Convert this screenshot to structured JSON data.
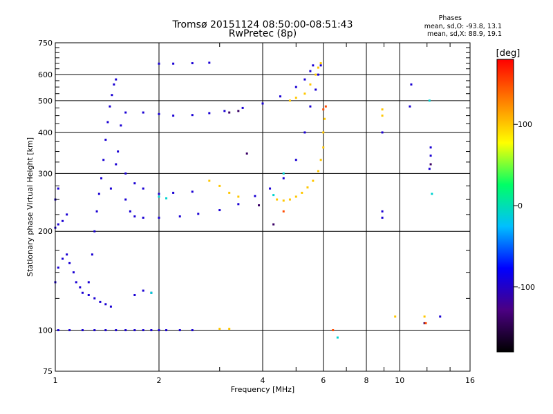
{
  "header": {
    "title": "Tromsø 20151124 08:50:00-08:51:43",
    "subtitle": "RwPretec (8p)",
    "stats_title": "Phases",
    "stats_o": "mean, sd,O: -93.8, 13.1",
    "stats_x": "mean, sd,X: 88.9, 19.1"
  },
  "chart_data": {
    "type": "scatter",
    "xlabel": "Frequency [MHz]",
    "ylabel": "Stationary phase Virtual Height [km]",
    "x_scale": "log",
    "y_scale": "log",
    "xlim": [
      1,
      16
    ],
    "ylim": [
      75,
      750
    ],
    "x_ticks": [
      1,
      2,
      4,
      6,
      8,
      10,
      16
    ],
    "y_ticks": [
      75,
      100,
      200,
      300,
      400,
      500,
      600,
      750
    ],
    "x_minor_ticks": [
      3,
      5,
      7,
      9,
      12,
      14
    ],
    "y_minor_ticks": [
      125,
      150,
      175,
      225,
      250,
      275,
      325,
      350,
      375,
      425,
      450,
      475,
      525,
      550,
      575,
      625,
      650,
      675,
      700,
      725
    ],
    "grid": true,
    "colorbar": {
      "label": "[deg]",
      "range": [
        -180,
        180
      ],
      "ticks": [
        100,
        0,
        -100
      ],
      "colors": [
        "#000000",
        "#4b0082",
        "#0000ff",
        "#00bfff",
        "#00ff66",
        "#ffff00",
        "#ff8000",
        "#ff0000"
      ]
    },
    "series": [
      {
        "phase": -95,
        "points": [
          [
            1.02,
            100
          ],
          [
            1.1,
            100
          ],
          [
            1.2,
            100
          ],
          [
            1.3,
            100
          ],
          [
            1.4,
            100
          ],
          [
            1.5,
            100
          ],
          [
            1.6,
            100
          ],
          [
            1.7,
            100
          ],
          [
            1.8,
            100
          ],
          [
            1.9,
            100
          ],
          [
            2.0,
            100
          ],
          [
            2.1,
            100
          ],
          [
            2.3,
            100
          ],
          [
            2.5,
            100
          ],
          [
            1.0,
            140
          ],
          [
            1.02,
            155
          ],
          [
            1.05,
            165
          ],
          [
            1.08,
            170
          ],
          [
            1.1,
            160
          ],
          [
            1.13,
            150
          ],
          [
            1.15,
            140
          ],
          [
            1.18,
            135
          ],
          [
            1.2,
            130
          ],
          [
            1.25,
            128
          ],
          [
            1.3,
            125
          ],
          [
            1.35,
            122
          ],
          [
            1.4,
            120
          ],
          [
            1.45,
            118
          ],
          [
            1.0,
            205
          ],
          [
            1.02,
            210
          ],
          [
            1.05,
            215
          ],
          [
            1.08,
            225
          ],
          [
            1.0,
            250
          ],
          [
            1.02,
            270
          ],
          [
            1.25,
            140
          ],
          [
            1.28,
            170
          ],
          [
            1.3,
            200
          ],
          [
            1.32,
            230
          ],
          [
            1.34,
            260
          ],
          [
            1.36,
            290
          ],
          [
            1.38,
            330
          ],
          [
            1.4,
            380
          ],
          [
            1.42,
            430
          ],
          [
            1.44,
            480
          ],
          [
            1.46,
            520
          ],
          [
            1.48,
            560
          ],
          [
            1.5,
            580
          ],
          [
            1.45,
            270
          ],
          [
            1.5,
            320
          ],
          [
            1.52,
            350
          ],
          [
            1.55,
            420
          ],
          [
            1.6,
            460
          ],
          [
            1.6,
            250
          ],
          [
            1.65,
            230
          ],
          [
            1.7,
            222
          ],
          [
            1.8,
            220
          ],
          [
            2.0,
            220
          ],
          [
            2.3,
            222
          ],
          [
            2.6,
            226
          ],
          [
            3.0,
            232
          ],
          [
            3.4,
            242
          ],
          [
            3.8,
            256
          ],
          [
            4.2,
            270
          ],
          [
            4.6,
            290
          ],
          [
            5.0,
            330
          ],
          [
            5.3,
            400
          ],
          [
            5.5,
            480
          ],
          [
            5.7,
            540
          ],
          [
            5.8,
            600
          ],
          [
            5.9,
            640
          ],
          [
            1.8,
            460
          ],
          [
            2.0,
            455
          ],
          [
            2.2,
            450
          ],
          [
            2.5,
            452
          ],
          [
            2.8,
            458
          ],
          [
            3.1,
            465
          ],
          [
            3.5,
            475
          ],
          [
            4.0,
            490
          ],
          [
            4.5,
            515
          ],
          [
            5.0,
            550
          ],
          [
            5.3,
            580
          ],
          [
            5.5,
            615
          ],
          [
            5.6,
            640
          ],
          [
            2.0,
            648
          ],
          [
            2.2,
            648
          ],
          [
            2.5,
            650
          ],
          [
            2.8,
            652
          ],
          [
            1.7,
            128
          ],
          [
            1.8,
            132
          ],
          [
            1.9,
            130
          ],
          [
            1.6,
            300
          ],
          [
            1.7,
            280
          ],
          [
            1.8,
            270
          ],
          [
            2.0,
            260
          ],
          [
            2.2,
            262
          ],
          [
            2.5,
            264
          ],
          [
            8.9,
            230
          ],
          [
            8.9,
            220
          ],
          [
            8.9,
            400
          ],
          [
            10.7,
            480
          ],
          [
            10.8,
            560
          ],
          [
            12.2,
            310
          ],
          [
            12.3,
            340
          ],
          [
            12.3,
            360
          ],
          [
            13.1,
            110
          ]
        ]
      },
      {
        "phase": -10,
        "points": [
          [
            1.9,
            130
          ],
          [
            2.0,
            255
          ],
          [
            2.1,
            252
          ],
          [
            4.3,
            258
          ],
          [
            4.6,
            300
          ],
          [
            6.6,
            95
          ],
          [
            12.4,
            260
          ],
          [
            12.2,
            500
          ]
        ]
      },
      {
        "phase": 100,
        "points": [
          [
            3.0,
            101
          ],
          [
            3.2,
            101
          ],
          [
            4.4,
            250
          ],
          [
            4.6,
            248
          ],
          [
            4.8,
            250
          ],
          [
            5.0,
            255
          ],
          [
            5.2,
            262
          ],
          [
            5.4,
            272
          ],
          [
            5.6,
            285
          ],
          [
            5.8,
            305
          ],
          [
            5.9,
            330
          ],
          [
            6.0,
            360
          ],
          [
            6.0,
            400
          ],
          [
            6.05,
            440
          ],
          [
            4.8,
            500
          ],
          [
            5.0,
            510
          ],
          [
            5.3,
            525
          ],
          [
            5.5,
            560
          ],
          [
            5.7,
            600
          ],
          [
            5.8,
            630
          ],
          [
            5.9,
            650
          ],
          [
            2.8,
            285
          ],
          [
            3.0,
            275
          ],
          [
            3.2,
            262
          ],
          [
            3.4,
            255
          ],
          [
            8.9,
            450
          ],
          [
            8.9,
            470
          ],
          [
            9.7,
            110
          ],
          [
            11.8,
            110
          ]
        ]
      },
      {
        "phase": -140,
        "points": [
          [
            3.2,
            460
          ],
          [
            3.4,
            465
          ],
          [
            4.3,
            210
          ],
          [
            3.9,
            240
          ],
          [
            3.6,
            345
          ],
          [
            11.8,
            105
          ],
          [
            12.3,
            320
          ]
        ]
      },
      {
        "phase": 150,
        "points": [
          [
            6.0,
            470
          ],
          [
            6.1,
            480
          ],
          [
            6.4,
            100
          ],
          [
            11.9,
            105
          ],
          [
            4.6,
            230
          ]
        ]
      }
    ]
  }
}
